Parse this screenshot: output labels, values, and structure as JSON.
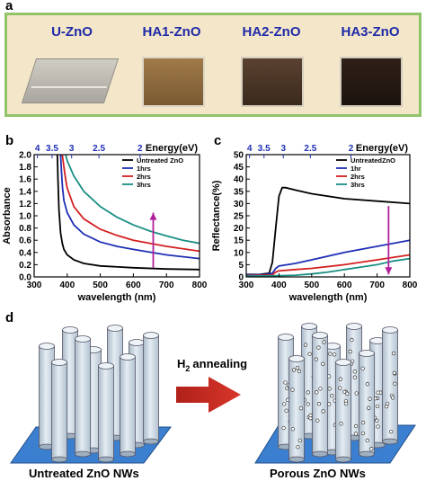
{
  "panel_letters": {
    "a": "a",
    "b": "b",
    "c": "c",
    "d": "d"
  },
  "samples": [
    {
      "label": "U-ZnO",
      "color": "#b9b6ae"
    },
    {
      "label": "HA1-ZnO",
      "color": "#8a6a3e"
    },
    {
      "label": "HA2-ZnO",
      "color": "#4a3522"
    },
    {
      "label": "HA3-ZnO",
      "color": "#2a1c16"
    }
  ],
  "colors": {
    "untreated": "#000000",
    "h1": "#1f2fb5",
    "h2": "#d42020",
    "h3": "#1a8f84",
    "arrow": "#b0209a",
    "energy_axis": "#1f2fb5",
    "frame_a": "#8fc46a",
    "bg_a": "#f4e6c8"
  },
  "chart_data": [
    {
      "type": "line",
      "xlabel": "wavelength (nm)",
      "ylabel": "Absorbance",
      "top_axis_label": "Energy(eV)",
      "top_ticks": [
        "4",
        "3.5",
        "3",
        "2.5",
        "2"
      ],
      "top_tick_energies": [
        4,
        3.5,
        3,
        2.5,
        2
      ],
      "xlim": [
        300,
        800
      ],
      "ylim": [
        0,
        2.0
      ],
      "xticks": [
        300,
        400,
        500,
        600,
        700,
        800
      ],
      "yticks": [
        "0.0",
        "0.2",
        "0.4",
        "0.6",
        "0.8",
        "1.0",
        "1.2",
        "1.4",
        "1.6",
        "1.8",
        "2.0"
      ],
      "ytick_values": [
        0,
        0.2,
        0.4,
        0.6,
        0.8,
        1.0,
        1.2,
        1.4,
        1.6,
        1.8,
        2.0
      ],
      "legend_position": "top-right",
      "arrow": {
        "x": 660,
        "y_from": 0.15,
        "y_to": 1.05
      },
      "series": [
        {
          "name": "Untreated ZnO",
          "color": "#000000",
          "x": [
            370,
            372,
            375,
            380,
            385,
            390,
            400,
            420,
            450,
            500,
            600,
            700,
            800
          ],
          "y": [
            2.0,
            1.6,
            1.1,
            0.72,
            0.55,
            0.45,
            0.36,
            0.28,
            0.22,
            0.18,
            0.15,
            0.13,
            0.12
          ]
        },
        {
          "name": "1hrs",
          "color": "#1f2fb5",
          "x": [
            380,
            383,
            386,
            390,
            400,
            420,
            450,
            500,
            550,
            600,
            700,
            800
          ],
          "y": [
            2.0,
            1.7,
            1.45,
            1.25,
            1.05,
            0.85,
            0.7,
            0.57,
            0.5,
            0.45,
            0.36,
            0.3
          ]
        },
        {
          "name": "2hrs",
          "color": "#d42020",
          "x": [
            385,
            390,
            395,
            400,
            420,
            450,
            500,
            550,
            600,
            700,
            800
          ],
          "y": [
            2.0,
            1.8,
            1.6,
            1.45,
            1.15,
            0.95,
            0.78,
            0.68,
            0.6,
            0.5,
            0.42
          ]
        },
        {
          "name": "3hrs",
          "color": "#1a8f84",
          "x": [
            395,
            400,
            420,
            450,
            500,
            550,
            600,
            650,
            700,
            750,
            800
          ],
          "y": [
            2.0,
            1.9,
            1.65,
            1.4,
            1.15,
            0.98,
            0.85,
            0.75,
            0.67,
            0.6,
            0.55
          ]
        }
      ]
    },
    {
      "type": "line",
      "xlabel": "wavelength (nm)",
      "ylabel": "Reflectance(%)",
      "top_axis_label": "Energy(eV)",
      "top_ticks": [
        "4",
        "3.5",
        "3",
        "2.5",
        "2"
      ],
      "top_tick_energies": [
        4,
        3.5,
        3,
        2.5,
        2
      ],
      "xlim": [
        300,
        800
      ],
      "ylim": [
        0,
        50
      ],
      "xticks": [
        300,
        400,
        500,
        600,
        700,
        800
      ],
      "yticks": [
        "0",
        "5",
        "10",
        "15",
        "20",
        "25",
        "30",
        "35",
        "40",
        "45",
        "50"
      ],
      "ytick_values": [
        0,
        5,
        10,
        15,
        20,
        25,
        30,
        35,
        40,
        45,
        50
      ],
      "legend_position": "top-right",
      "arrow": {
        "x": 735,
        "y_from": 29,
        "y_to": 1
      },
      "series": [
        {
          "name": "UntreatedZnO",
          "color": "#000000",
          "x": [
            300,
            340,
            370,
            380,
            390,
            400,
            410,
            420,
            450,
            500,
            600,
            700,
            800
          ],
          "y": [
            1.0,
            1.0,
            1.5,
            6,
            20,
            33,
            36.5,
            36.5,
            35.5,
            34,
            32,
            31,
            30
          ]
        },
        {
          "name": "1hr",
          "color": "#1f2fb5",
          "x": [
            300,
            360,
            380,
            390,
            400,
            450,
            500,
            600,
            700,
            800
          ],
          "y": [
            0.8,
            1.0,
            1.5,
            3.5,
            4.5,
            5.5,
            7,
            10,
            12.5,
            15
          ]
        },
        {
          "name": "2hrs",
          "color": "#d42020",
          "x": [
            300,
            380,
            390,
            400,
            450,
            500,
            600,
            700,
            800
          ],
          "y": [
            0.5,
            0.8,
            2,
            2.5,
            3,
            3.5,
            5,
            7,
            9
          ]
        },
        {
          "name": "3hrs",
          "color": "#1a8f84",
          "x": [
            300,
            400,
            450,
            500,
            550,
            600,
            650,
            700,
            750,
            800
          ],
          "y": [
            0.3,
            0.5,
            0.7,
            1.2,
            2,
            3,
            4,
            5,
            6.5,
            7.5
          ]
        }
      ]
    }
  ],
  "diagram": {
    "process_label": "annealing",
    "process_gas_main": "H",
    "process_gas_sub": "2",
    "left_caption": "Untreated ZnO NWs",
    "right_caption": "Porous  ZnO NWs"
  }
}
